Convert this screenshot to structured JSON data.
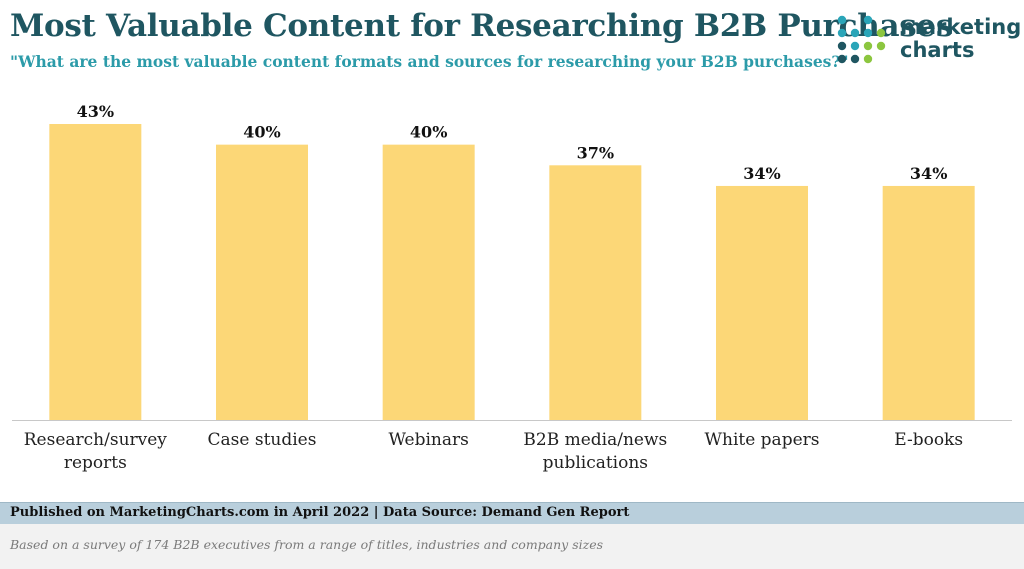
{
  "header": {
    "title": "Most Valuable Content for Researching B2B Purchases",
    "subtitle": "\"What are the most valuable content formats and sources for researching your B2B purchases?\""
  },
  "logo": {
    "line1": "marketing",
    "line2": "charts"
  },
  "colors": {
    "title": "#1f5661",
    "subtitle": "#2c9ba9",
    "bar": "#fcd777",
    "footer_band": "#b9cfdc",
    "logo_dot_teal": "#2aa5b8",
    "logo_dot_navy": "#1f5661",
    "logo_dot_green": "#8cc63f"
  },
  "chart_data": {
    "type": "bar",
    "categories": [
      [
        "Research/survey",
        "reports"
      ],
      [
        "Case studies"
      ],
      [
        "Webinars"
      ],
      [
        "B2B media/news",
        "publications"
      ],
      [
        "White papers"
      ],
      [
        "E-books"
      ]
    ],
    "values": [
      43,
      40,
      40,
      37,
      34,
      34
    ],
    "value_labels": [
      "43%",
      "40%",
      "40%",
      "37%",
      "34%",
      "34%"
    ],
    "ylim": [
      0,
      43
    ],
    "grid": false,
    "legend": "none"
  },
  "footer": {
    "published": "Published on MarketingCharts.com in April 2022 | Data Source: Demand Gen Report",
    "note": "Based on a survey of 174 B2B executives from a range of titles, industries and company sizes"
  }
}
